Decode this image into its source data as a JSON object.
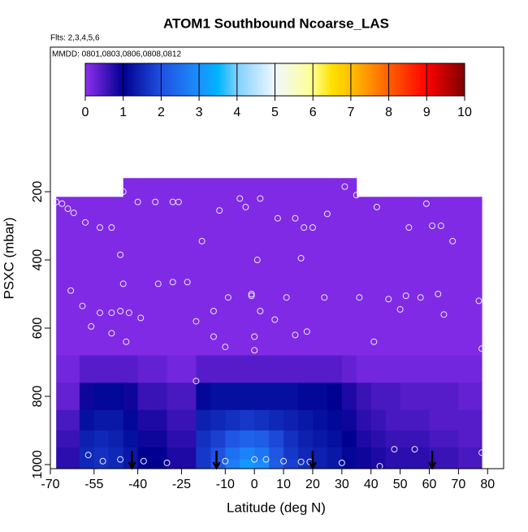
{
  "chart_data": {
    "type": "heatmap",
    "title": "ATOM1 Southbound Ncoarse_LAS",
    "subtitle": "Flts: 2,3,4,5,6",
    "note": "MMDD: 0801,0803,0806,0808,0812",
    "xlabel": "Latitude (deg N)",
    "ylabel": "PSXC (mbar)",
    "xlim": [
      -70,
      85.5
    ],
    "xticks": [
      -70,
      -55,
      -40,
      -25,
      -10,
      0,
      10,
      20,
      30,
      40,
      50,
      60,
      70,
      80
    ],
    "ylim": [
      1012,
      -224
    ],
    "yticks": [
      200,
      400,
      600,
      800,
      1000
    ],
    "xedges": [
      -68,
      -60,
      -55,
      -50,
      -45,
      -40,
      -30,
      -20,
      -15,
      -10,
      -5,
      0,
      5,
      10,
      15,
      20,
      25,
      30,
      35,
      40,
      45,
      50,
      60,
      70,
      78
    ],
    "yedges": [
      160,
      215,
      680,
      760,
      840,
      900,
      950,
      985,
      1012
    ],
    "z": [
      [
        null,
        null,
        null,
        null,
        0.1,
        0.1,
        0.1,
        0.1,
        0.1,
        0.1,
        0.1,
        0.1,
        0.1,
        0.1,
        0.1,
        0.1,
        0.1,
        0.1,
        null,
        null,
        null,
        null,
        null,
        null
      ],
      [
        0.1,
        0.1,
        0.1,
        0.1,
        0.1,
        0.1,
        0.1,
        0.1,
        0.1,
        0.1,
        0.1,
        0.1,
        0.1,
        0.1,
        0.1,
        0.1,
        0.1,
        0.1,
        0.1,
        0.1,
        0.1,
        0.1,
        0.1,
        0.1
      ],
      [
        0.2,
        0.4,
        0.4,
        0.4,
        0.4,
        0.3,
        0.2,
        0.4,
        0.4,
        0.4,
        0.4,
        0.4,
        0.4,
        0.4,
        0.4,
        0.4,
        0.4,
        0.3,
        0.2,
        0.2,
        0.2,
        0.2,
        0.2,
        0.2
      ],
      [
        0.3,
        0.9,
        1.1,
        1.1,
        0.9,
        0.6,
        0.5,
        1.1,
        1.2,
        1.2,
        1.2,
        1.2,
        1.2,
        1.2,
        1.1,
        1.1,
        1.0,
        0.8,
        0.6,
        0.5,
        0.5,
        0.4,
        0.4,
        0.3
      ],
      [
        0.5,
        1.2,
        1.3,
        1.3,
        1.1,
        0.8,
        0.6,
        1.4,
        1.5,
        1.6,
        1.7,
        1.6,
        1.5,
        1.4,
        1.3,
        1.2,
        1.1,
        0.9,
        0.7,
        0.6,
        0.5,
        0.5,
        0.4,
        0.4
      ],
      [
        0.6,
        1.4,
        1.5,
        1.4,
        1.2,
        0.9,
        0.7,
        1.6,
        1.8,
        2.1,
        2.3,
        2.2,
        1.9,
        1.6,
        1.4,
        1.3,
        1.2,
        1.0,
        0.8,
        0.7,
        0.6,
        0.6,
        0.5,
        0.4
      ],
      [
        0.7,
        1.5,
        1.6,
        1.5,
        1.3,
        1.0,
        0.8,
        1.7,
        2.0,
        2.5,
        2.8,
        2.6,
        2.1,
        1.7,
        1.5,
        1.4,
        1.3,
        1.1,
        0.9,
        0.8,
        0.7,
        0.7,
        0.6,
        0.5
      ],
      [
        0.7,
        1.5,
        1.6,
        1.5,
        1.3,
        1.0,
        0.8,
        1.7,
        2.1,
        2.7,
        3.1,
        2.9,
        2.2,
        1.8,
        1.6,
        1.4,
        1.3,
        1.1,
        0.9,
        0.8,
        0.7,
        0.7,
        0.6,
        0.5
      ]
    ],
    "clim": [
      0,
      10
    ],
    "cticks": [
      0,
      1,
      2,
      3,
      4,
      5,
      6,
      7,
      8,
      9,
      10
    ],
    "colorscale": [
      [
        0,
        "#8f2ff0"
      ],
      [
        1,
        "#000090"
      ],
      [
        2,
        "#2050e0"
      ],
      [
        3,
        "#1a90ff"
      ],
      [
        3.5,
        "#00b4ff"
      ],
      [
        4,
        "#80d0ff"
      ],
      [
        5,
        "#f0f8ff"
      ],
      [
        6,
        "#ffff90"
      ],
      [
        6.5,
        "#ffe000"
      ],
      [
        7,
        "#ffc000"
      ],
      [
        8,
        "#ff6000"
      ],
      [
        9,
        "#ff0000"
      ],
      [
        10,
        "#800000"
      ]
    ],
    "points": {
      "x": [
        -68,
        -66,
        -64,
        -62,
        -58,
        -53,
        -49,
        -45,
        -40,
        -34,
        -28,
        -26,
        -18,
        -12,
        -5,
        -3,
        2,
        8,
        14,
        17,
        20,
        25,
        31,
        35,
        42,
        53,
        59,
        61,
        64,
        68,
        -63,
        -59,
        -56,
        -53,
        -49,
        -45,
        -46,
        -33,
        -23,
        -14,
        -9,
        -1,
        2,
        7,
        14,
        18,
        24,
        36,
        46,
        52,
        57,
        63,
        65,
        77,
        -46,
        -43,
        -39,
        -49,
        -44,
        -10,
        0,
        0,
        -20,
        -57,
        -52,
        -46,
        -38,
        -30,
        -10,
        0,
        4,
        10,
        16,
        19,
        30,
        43,
        48,
        55,
        78,
        -14,
        -20,
        78,
        -28,
        41,
        50,
        -1,
        1,
        16,
        11
      ],
      "y": [
        230,
        235,
        250,
        262,
        290,
        305,
        305,
        200,
        230,
        230,
        230,
        230,
        345,
        255,
        220,
        245,
        220,
        278,
        278,
        305,
        305,
        265,
        185,
        210,
        245,
        305,
        235,
        300,
        300,
        345,
        490,
        535,
        595,
        555,
        555,
        470,
        385,
        470,
        465,
        550,
        510,
        500,
        550,
        575,
        620,
        610,
        510,
        510,
        515,
        505,
        510,
        500,
        560,
        520,
        550,
        555,
        570,
        615,
        640,
        655,
        625,
        665,
        755,
        972,
        990,
        985,
        990,
        995,
        990,
        985,
        985,
        990,
        992,
        992,
        995,
        1005,
        955,
        955,
        965,
        625,
        580,
        660,
        465,
        640,
        545,
        505,
        400,
        395,
        510
      ]
    },
    "arrows": [
      -42,
      -13,
      20,
      61
    ]
  }
}
